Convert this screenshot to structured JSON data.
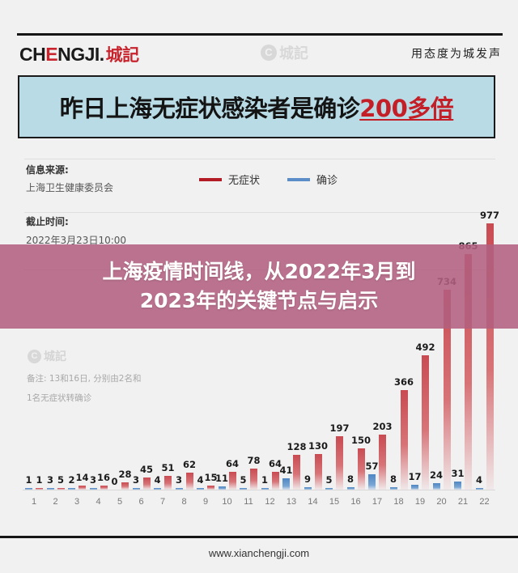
{
  "header": {
    "brand_prefix": "CH",
    "brand_e": "E",
    "brand_suffix": "NGJI.",
    "brand_cn": "城記",
    "watermark_c": "C",
    "watermark_text": "城記",
    "slogan": "用态度为城发声"
  },
  "banner": {
    "text": "昨日上海无症状感染者是确诊",
    "highlight": "200多倍"
  },
  "info": {
    "source_label": "信息来源:",
    "source_value": "上海卫生健康委员会",
    "cutoff_label": "截止时间:",
    "cutoff_value": "2022年3月23日10:00"
  },
  "legend": {
    "asymptomatic": "无症状",
    "confirmed": "确诊",
    "asymptomatic_color": "#b31c25",
    "confirmed_color": "#5b8ec8"
  },
  "note": {
    "watermark_c": "C",
    "watermark_text": "城記",
    "line1": "备注: 13和16日, 分别由2名和",
    "line2": "1名无症状转确诊"
  },
  "overlay": {
    "line1": "上海疫情时间线，从2022年3月到",
    "line2": "2023年的关键节点与启示"
  },
  "footer": {
    "url": "www.xianchengji.com"
  },
  "chart_data": {
    "type": "bar",
    "title": "昨日上海无症状感染者是确诊200多倍",
    "xlabel": "",
    "ylabel": "",
    "categories": [
      "1",
      "2",
      "3",
      "4",
      "5",
      "6",
      "7",
      "8",
      "9",
      "10",
      "11",
      "12",
      "13",
      "14",
      "15",
      "16",
      "17",
      "18",
      "19",
      "20",
      "21",
      "22"
    ],
    "series": [
      {
        "name": "确诊",
        "color": "#5b8ec8",
        "values": [
          1,
          3,
          2,
          3,
          0,
          3,
          4,
          3,
          4,
          11,
          5,
          1,
          41,
          9,
          5,
          8,
          57,
          8,
          17,
          24,
          31,
          4
        ]
      },
      {
        "name": "无症状",
        "color": "#b31c25",
        "values": [
          1,
          5,
          14,
          16,
          28,
          45,
          51,
          62,
          15,
          64,
          78,
          64,
          128,
          130,
          197,
          150,
          203,
          366,
          492,
          734,
          865,
          977
        ]
      }
    ],
    "ylim": [
      0,
      1000
    ],
    "grid": false,
    "legend_position": "top"
  }
}
